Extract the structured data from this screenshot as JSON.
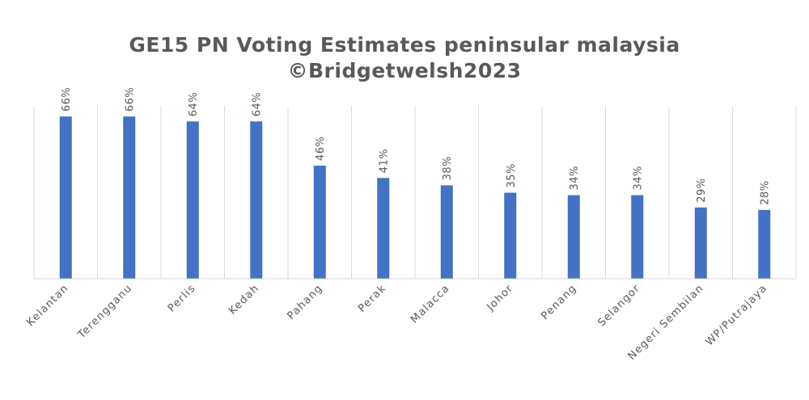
{
  "chart_data": {
    "type": "bar",
    "title": "GE15 PN Voting Estimates peninsular malaysia",
    "subtitle": "©Bridgetwelsh2023",
    "categories": [
      "Kelantan",
      "Terengganu",
      "Perlis",
      "Kedah",
      "Pahang",
      "Perak",
      "Malacca",
      "Johor",
      "Penang",
      "Selangor",
      "Negeri Sembilan",
      "WP/Putrajaya"
    ],
    "values": [
      66,
      66,
      64,
      64,
      46,
      41,
      38,
      35,
      34,
      34,
      29,
      28
    ],
    "data_labels": [
      "66%",
      "66%",
      "64%",
      "64%",
      "46%",
      "41%",
      "38%",
      "35%",
      "34%",
      "34%",
      "29%",
      "28%"
    ],
    "value_unit": "%",
    "ylim": [
      0,
      70
    ],
    "grid": "vertical category separators",
    "legend": "none",
    "bar_color": "#4472c4"
  }
}
